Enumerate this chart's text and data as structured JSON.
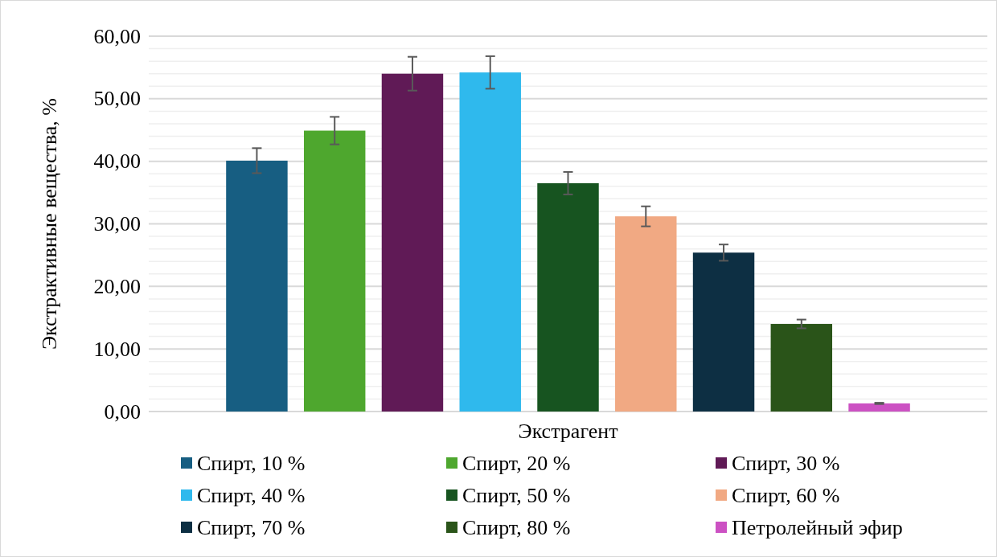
{
  "chart_data": {
    "type": "bar",
    "ylabel": "Экстрактивные вещества, %",
    "categories": [
      "Экстрагент"
    ],
    "ylim": [
      0,
      60
    ],
    "yticks": [
      {
        "value": 0,
        "label": "0,00"
      },
      {
        "value": 2,
        "label": null
      },
      {
        "value": 4,
        "label": null
      },
      {
        "value": 6,
        "label": null
      },
      {
        "value": 8,
        "label": null
      },
      {
        "value": 10,
        "label": "10,00"
      },
      {
        "value": 12,
        "label": null
      },
      {
        "value": 14,
        "label": null
      },
      {
        "value": 16,
        "label": null
      },
      {
        "value": 18,
        "label": null
      },
      {
        "value": 20,
        "label": "20,00"
      },
      {
        "value": 22,
        "label": null
      },
      {
        "value": 24,
        "label": null
      },
      {
        "value": 26,
        "label": null
      },
      {
        "value": 28,
        "label": null
      },
      {
        "value": 30,
        "label": "30,00"
      },
      {
        "value": 32,
        "label": null
      },
      {
        "value": 34,
        "label": null
      },
      {
        "value": 36,
        "label": null
      },
      {
        "value": 38,
        "label": null
      },
      {
        "value": 40,
        "label": "40,00"
      },
      {
        "value": 42,
        "label": null
      },
      {
        "value": 44,
        "label": null
      },
      {
        "value": 46,
        "label": null
      },
      {
        "value": 48,
        "label": null
      },
      {
        "value": 50,
        "label": "50,00"
      },
      {
        "value": 52,
        "label": null
      },
      {
        "value": 54,
        "label": null
      },
      {
        "value": 56,
        "label": null
      },
      {
        "value": 58,
        "label": null
      },
      {
        "value": 60,
        "label": "60,00"
      }
    ],
    "grid": "y",
    "legend": "bottom",
    "series": [
      {
        "name": "Спирт, 10 %",
        "color": "#175e82",
        "values": [
          40.1
        ],
        "errors": [
          2.0
        ]
      },
      {
        "name": "Спирт, 20 %",
        "color": "#4ea72e",
        "values": [
          44.9
        ],
        "errors": [
          2.2
        ]
      },
      {
        "name": "Спирт, 30 %",
        "color": "#601a56",
        "values": [
          54.0
        ],
        "errors": [
          2.7
        ]
      },
      {
        "name": "Спирт, 40 %",
        "color": "#2fb9ed",
        "values": [
          54.2
        ],
        "errors": [
          2.6
        ]
      },
      {
        "name": "Спирт, 50 %",
        "color": "#175420",
        "values": [
          36.5
        ],
        "errors": [
          1.8
        ]
      },
      {
        "name": "Спирт, 60 %",
        "color": "#f1a983",
        "values": [
          31.2
        ],
        "errors": [
          1.6
        ]
      },
      {
        "name": "Спирт, 70 %",
        "color": "#0d2f43",
        "values": [
          25.4
        ],
        "errors": [
          1.3
        ]
      },
      {
        "name": "Спирт, 80 %",
        "color": "#2a5419",
        "values": [
          14.0
        ],
        "errors": [
          0.7
        ]
      },
      {
        "name": "Петролейный эфир",
        "color": "#cc51c3",
        "values": [
          1.3
        ],
        "errors": [
          0.1
        ]
      }
    ]
  }
}
